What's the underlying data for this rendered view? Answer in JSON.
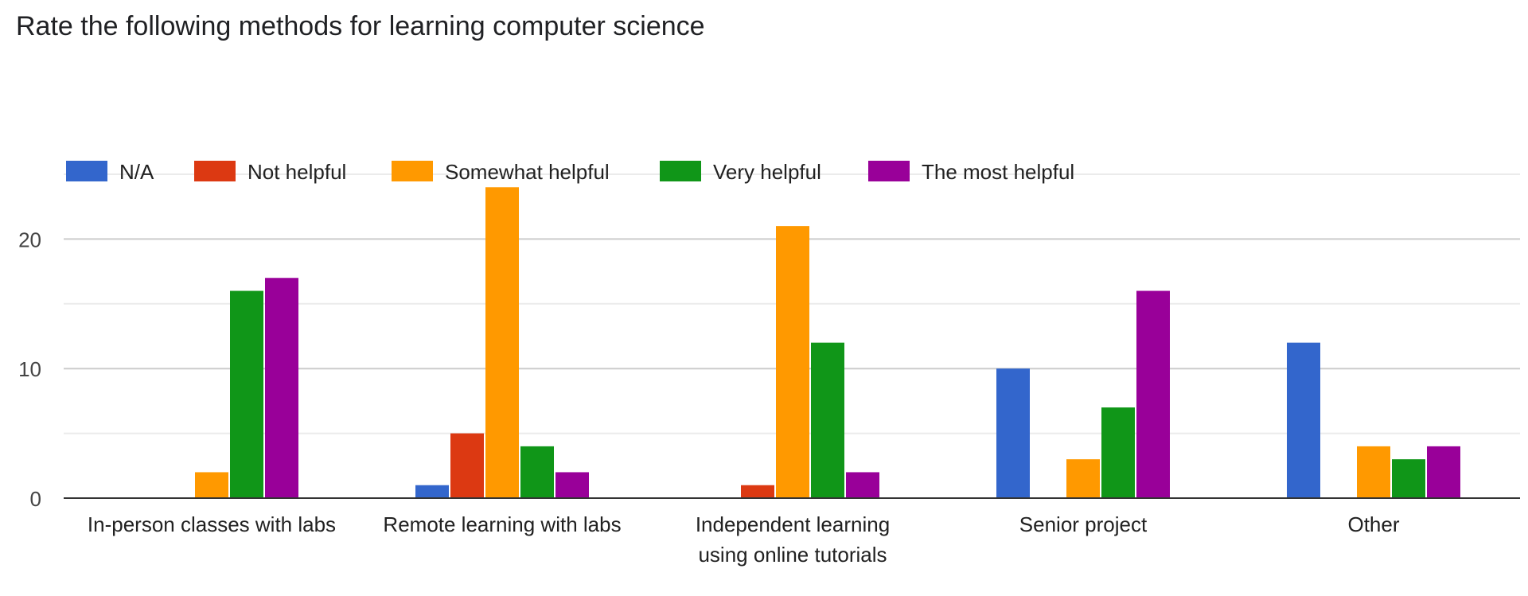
{
  "chart_data": {
    "type": "bar",
    "title": "Rate the following methods for learning computer science",
    "categories": [
      [
        "In-person classes with labs"
      ],
      [
        "Remote learning with labs"
      ],
      [
        "Independent learning",
        "using online tutorials"
      ],
      [
        "Senior project"
      ],
      [
        "Other"
      ]
    ],
    "series": [
      {
        "name": "N/A",
        "color": "#3366cc",
        "values": [
          0,
          1,
          0,
          10,
          12
        ]
      },
      {
        "name": "Not helpful",
        "color": "#dc3912",
        "values": [
          0,
          5,
          1,
          0,
          0
        ]
      },
      {
        "name": "Somewhat helpful",
        "color": "#ff9900",
        "values": [
          2,
          24,
          21,
          3,
          4
        ]
      },
      {
        "name": "Very helpful",
        "color": "#109618",
        "values": [
          16,
          4,
          12,
          7,
          3
        ]
      },
      {
        "name": "The most helpful",
        "color": "#990099",
        "values": [
          17,
          2,
          2,
          16,
          4
        ]
      }
    ],
    "ylim": [
      0,
      25
    ],
    "yticks": [
      0,
      10,
      20
    ],
    "minor_gridlines": [
      5,
      15,
      25
    ],
    "grid": true,
    "legend_position": "top-left",
    "xlabel": "",
    "ylabel": ""
  }
}
